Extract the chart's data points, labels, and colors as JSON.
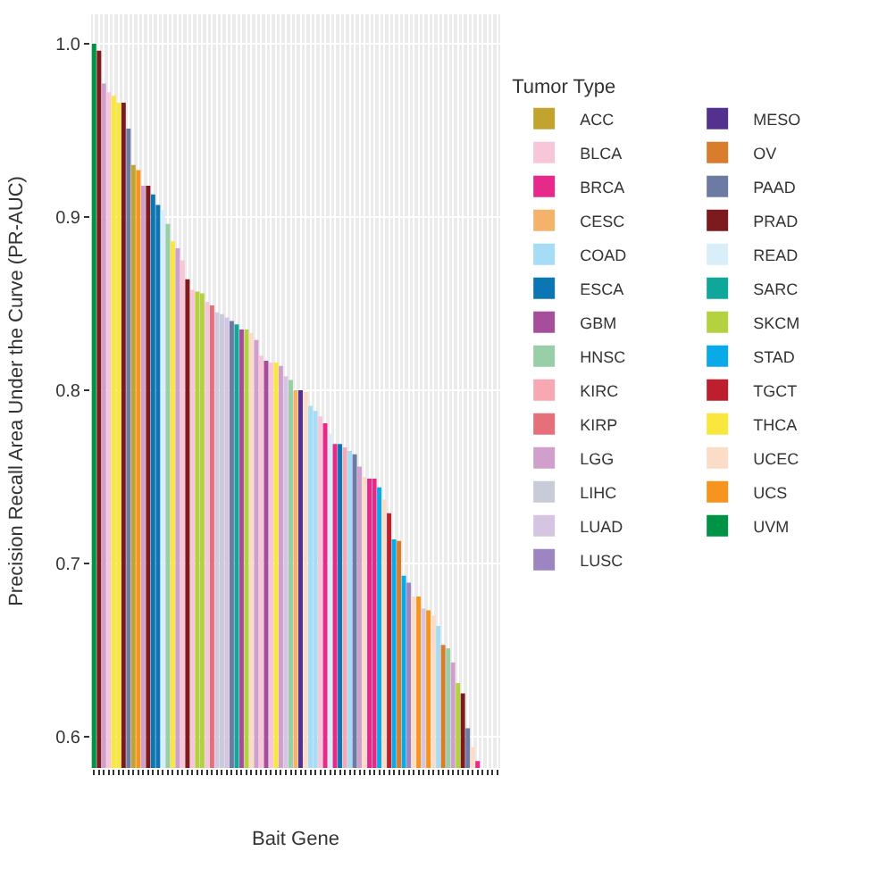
{
  "chart_data": {
    "type": "bar",
    "xlabel": "Bait Gene",
    "ylabel": "Precision Recall Area Under the Curve (PR-AUC)",
    "legend_title": "Tumor Type",
    "legend": "right",
    "grid": true,
    "ylim": [
      0.582,
      1.017
    ],
    "yticks": [
      0.6,
      0.7,
      0.8,
      0.9,
      {
        "value": 1,
        "label": "1.0"
      }
    ],
    "categories": [
      null,
      null,
      null,
      null,
      null,
      null,
      null,
      null,
      null,
      null,
      null,
      null,
      null,
      null,
      null,
      null,
      null,
      null,
      null,
      null,
      null,
      null,
      null,
      null,
      null,
      null,
      null,
      null,
      null,
      null,
      null,
      null,
      null,
      null,
      null,
      null,
      null,
      null,
      null,
      null,
      null,
      null,
      null,
      null,
      null,
      null,
      null,
      null,
      null,
      null,
      null,
      null,
      null,
      null,
      null,
      null,
      null,
      null,
      null,
      null,
      null,
      null,
      null,
      null,
      null,
      null,
      null,
      null,
      null,
      null,
      null,
      null,
      null,
      null,
      null,
      null,
      null,
      null,
      null,
      null,
      null,
      null,
      null
    ],
    "series": [
      {
        "name": "ACC",
        "color": "#c2a32f",
        "values": [
          null,
          null,
          null,
          null,
          null,
          null,
          null,
          null,
          0.93,
          null,
          null,
          null,
          null,
          null,
          null,
          null,
          null,
          null,
          null,
          null,
          null,
          null,
          null,
          null,
          null,
          null,
          null,
          null,
          null,
          null,
          null,
          null,
          null,
          null,
          null,
          null,
          null,
          null,
          null,
          null,
          null,
          null,
          null,
          null,
          null,
          null,
          null,
          null,
          null,
          null,
          null,
          null,
          null,
          null,
          null,
          null,
          null,
          null,
          null,
          null,
          null,
          null,
          null,
          null,
          null,
          null,
          null,
          null,
          null,
          null,
          null,
          null,
          null,
          null,
          null,
          null,
          null,
          null,
          null,
          null,
          null,
          null,
          null
        ]
      },
      {
        "name": "BLCA",
        "color": "#f7c6d9",
        "values": [
          null,
          null,
          null,
          0.972,
          null,
          null,
          null,
          null,
          null,
          null,
          null,
          null,
          null,
          null,
          null,
          null,
          null,
          null,
          0.875,
          null,
          0.858,
          null,
          null,
          0.851,
          null,
          null,
          null,
          null,
          null,
          null,
          null,
          null,
          null,
          null,
          0.82,
          null,
          0.816,
          null,
          null,
          null,
          null,
          null,
          null,
          null,
          null,
          null,
          0.785,
          null,
          null,
          null,
          null,
          null,
          null,
          null,
          null,
          null,
          null,
          null,
          null,
          null,
          null,
          null,
          null,
          null,
          null,
          null,
          null,
          null,
          null,
          null,
          null,
          null,
          null,
          null,
          null,
          null,
          null,
          null,
          null,
          null,
          null,
          null,
          null
        ]
      },
      {
        "name": "BRCA",
        "color": "#e7298a",
        "values": [
          null,
          null,
          null,
          null,
          null,
          null,
          null,
          null,
          null,
          null,
          null,
          null,
          null,
          null,
          null,
          null,
          null,
          null,
          null,
          null,
          null,
          null,
          null,
          null,
          null,
          null,
          null,
          null,
          null,
          null,
          null,
          null,
          null,
          null,
          null,
          null,
          null,
          null,
          null,
          null,
          null,
          null,
          null,
          null,
          null,
          null,
          null,
          0.781,
          null,
          0.769,
          null,
          null,
          null,
          null,
          null,
          null,
          0.749,
          0.749,
          null,
          null,
          null,
          null,
          null,
          null,
          null,
          null,
          null,
          null,
          null,
          null,
          null,
          null,
          null,
          null,
          null,
          null,
          null,
          null,
          0.586,
          null,
          null,
          null,
          null
        ]
      },
      {
        "name": "CESC",
        "color": "#f4b26b",
        "values": [
          null,
          null,
          null,
          null,
          null,
          null,
          null,
          null,
          null,
          null,
          null,
          null,
          null,
          null,
          null,
          null,
          null,
          null,
          null,
          null,
          null,
          null,
          null,
          null,
          null,
          null,
          null,
          null,
          null,
          null,
          null,
          null,
          null,
          null,
          null,
          null,
          null,
          null,
          null,
          null,
          null,
          0.8,
          null,
          null,
          null,
          null,
          null,
          null,
          null,
          null,
          null,
          null,
          null,
          null,
          null,
          null,
          null,
          null,
          null,
          null,
          null,
          null,
          null,
          null,
          null,
          null,
          null,
          null,
          null,
          null,
          null,
          null,
          null,
          null,
          null,
          null,
          null,
          null,
          null,
          null,
          null,
          null,
          null
        ]
      },
      {
        "name": "COAD",
        "color": "#a6dcf5",
        "values": [
          null,
          null,
          null,
          null,
          null,
          null,
          null,
          null,
          null,
          null,
          null,
          null,
          null,
          null,
          null,
          null,
          null,
          null,
          null,
          null,
          null,
          null,
          null,
          null,
          null,
          null,
          null,
          null,
          null,
          null,
          null,
          null,
          null,
          null,
          null,
          null,
          null,
          null,
          null,
          null,
          null,
          null,
          null,
          null,
          0.791,
          0.788,
          null,
          null,
          null,
          null,
          null,
          null,
          0.765,
          null,
          null,
          null,
          null,
          null,
          null,
          null,
          null,
          null,
          null,
          null,
          null,
          null,
          null,
          null,
          null,
          null,
          0.664,
          null,
          null,
          null,
          null,
          null,
          null,
          null,
          null,
          null,
          null,
          null,
          null
        ]
      },
      {
        "name": "ESCA",
        "color": "#0c76b4",
        "values": [
          null,
          null,
          null,
          null,
          null,
          null,
          null,
          null,
          null,
          null,
          null,
          null,
          0.913,
          0.907,
          null,
          null,
          null,
          null,
          null,
          null,
          null,
          null,
          null,
          null,
          null,
          null,
          null,
          null,
          null,
          null,
          null,
          null,
          null,
          null,
          null,
          null,
          null,
          null,
          null,
          null,
          null,
          null,
          null,
          null,
          null,
          null,
          null,
          null,
          null,
          null,
          0.769,
          null,
          null,
          null,
          null,
          null,
          null,
          null,
          null,
          null,
          null,
          null,
          null,
          null,
          null,
          null,
          null,
          null,
          null,
          null,
          null,
          null,
          null,
          null,
          null,
          null,
          null,
          null,
          null,
          null,
          null,
          null,
          null
        ]
      },
      {
        "name": "GBM",
        "color": "#a64d9c",
        "values": [
          null,
          null,
          null,
          null,
          null,
          null,
          null,
          null,
          null,
          null,
          null,
          null,
          null,
          null,
          null,
          null,
          null,
          null,
          null,
          null,
          null,
          null,
          null,
          null,
          null,
          null,
          null,
          null,
          null,
          null,
          0.835,
          null,
          null,
          null,
          null,
          0.817,
          null,
          null,
          null,
          null,
          null,
          null,
          null,
          null,
          null,
          null,
          null,
          null,
          null,
          null,
          null,
          null,
          null,
          null,
          null,
          null,
          null,
          null,
          null,
          null,
          null,
          null,
          null,
          null,
          null,
          null,
          null,
          null,
          null,
          null,
          null,
          null,
          null,
          null,
          null,
          null,
          null,
          null,
          null,
          null,
          null,
          null,
          null
        ]
      },
      {
        "name": "HNSC",
        "color": "#99cfa8",
        "values": [
          null,
          null,
          null,
          null,
          null,
          null,
          null,
          null,
          null,
          null,
          null,
          null,
          null,
          null,
          null,
          0.896,
          null,
          null,
          null,
          null,
          null,
          null,
          null,
          null,
          null,
          null,
          null,
          null,
          null,
          null,
          null,
          null,
          null,
          null,
          null,
          null,
          null,
          null,
          null,
          null,
          0.806,
          null,
          null,
          null,
          null,
          null,
          null,
          null,
          null,
          null,
          null,
          null,
          null,
          null,
          null,
          null,
          null,
          null,
          null,
          null,
          null,
          null,
          null,
          null,
          null,
          null,
          null,
          null,
          null,
          null,
          null,
          null,
          0.651,
          null,
          null,
          null,
          null,
          null,
          null,
          null,
          null,
          null,
          null
        ]
      },
      {
        "name": "KIRC",
        "color": "#f7a8b2",
        "values": [
          null,
          null,
          null,
          null,
          null,
          null,
          null,
          null,
          null,
          null,
          null,
          null,
          null,
          null,
          null,
          null,
          null,
          null,
          null,
          null,
          null,
          null,
          null,
          null,
          null,
          null,
          null,
          null,
          null,
          null,
          null,
          null,
          null,
          null,
          null,
          null,
          null,
          null,
          null,
          null,
          null,
          null,
          null,
          null,
          null,
          null,
          null,
          null,
          null,
          null,
          null,
          0.767,
          null,
          null,
          null,
          null,
          null,
          null,
          null,
          null,
          null,
          null,
          null,
          null,
          null,
          null,
          null,
          null,
          null,
          null,
          null,
          null,
          null,
          null,
          null,
          null,
          null,
          null,
          null,
          null,
          null,
          null,
          null
        ]
      },
      {
        "name": "KIRP",
        "color": "#e5707a",
        "values": [
          null,
          null,
          null,
          null,
          null,
          null,
          null,
          null,
          null,
          null,
          null,
          null,
          null,
          null,
          null,
          null,
          null,
          null,
          null,
          null,
          null,
          null,
          null,
          null,
          0.849,
          null,
          null,
          null,
          null,
          null,
          null,
          null,
          null,
          null,
          null,
          null,
          null,
          null,
          null,
          null,
          null,
          null,
          null,
          null,
          null,
          null,
          null,
          null,
          null,
          null,
          null,
          null,
          null,
          null,
          null,
          null,
          null,
          null,
          null,
          null,
          null,
          null,
          null,
          null,
          null,
          null,
          null,
          null,
          null,
          null,
          null,
          null,
          null,
          null,
          null,
          null,
          null,
          null,
          null,
          null,
          null,
          null,
          null
        ]
      },
      {
        "name": "LGG",
        "color": "#d19fcb",
        "values": [
          null,
          null,
          0.977,
          null,
          null,
          null,
          null,
          null,
          null,
          null,
          0.918,
          null,
          null,
          null,
          null,
          null,
          null,
          0.882,
          null,
          null,
          null,
          null,
          null,
          null,
          null,
          null,
          null,
          null,
          null,
          null,
          null,
          null,
          null,
          0.829,
          null,
          null,
          null,
          null,
          0.814,
          null,
          null,
          null,
          null,
          null,
          null,
          null,
          null,
          null,
          null,
          null,
          null,
          null,
          null,
          null,
          0.756,
          null,
          null,
          null,
          null,
          null,
          null,
          null,
          null,
          null,
          null,
          null,
          null,
          null,
          null,
          null,
          null,
          null,
          null,
          0.643,
          null,
          null,
          null,
          null,
          null,
          null,
          null,
          null,
          null
        ]
      },
      {
        "name": "LIHC",
        "color": "#c8cbd8",
        "values": [
          null,
          null,
          null,
          null,
          null,
          null,
          null,
          null,
          null,
          null,
          null,
          null,
          null,
          null,
          null,
          null,
          null,
          null,
          null,
          null,
          null,
          null,
          null,
          null,
          null,
          null,
          0.844,
          null,
          null,
          null,
          null,
          null,
          null,
          null,
          null,
          null,
          null,
          null,
          null,
          null,
          null,
          null,
          null,
          null,
          null,
          null,
          null,
          null,
          null,
          null,
          null,
          null,
          null,
          null,
          null,
          null,
          null,
          null,
          null,
          null,
          null,
          null,
          null,
          null,
          null,
          null,
          null,
          null,
          null,
          null,
          null,
          null,
          null,
          null,
          null,
          null,
          null,
          null,
          null,
          null,
          null,
          null,
          null
        ]
      },
      {
        "name": "LUAD",
        "color": "#d5c5e3",
        "values": [
          null,
          null,
          null,
          null,
          null,
          null,
          null,
          null,
          null,
          null,
          null,
          null,
          null,
          null,
          null,
          null,
          null,
          null,
          null,
          null,
          null,
          null,
          null,
          null,
          null,
          0.845,
          null,
          0.842,
          null,
          null,
          null,
          null,
          null,
          null,
          null,
          null,
          null,
          null,
          null,
          0.808,
          null,
          null,
          null,
          null,
          null,
          null,
          null,
          null,
          null,
          null,
          null,
          null,
          null,
          null,
          null,
          null,
          null,
          null,
          null,
          null,
          null,
          null,
          null,
          null,
          null,
          null,
          null,
          0.674,
          null,
          null,
          null,
          null,
          null,
          null,
          null,
          null,
          null,
          null,
          null,
          null,
          null,
          null,
          null
        ]
      },
      {
        "name": "LUSC",
        "color": "#9c85c0",
        "values": [
          null,
          null,
          null,
          null,
          null,
          null,
          null,
          null,
          null,
          null,
          null,
          null,
          null,
          null,
          null,
          null,
          null,
          null,
          null,
          null,
          null,
          null,
          null,
          null,
          null,
          null,
          null,
          null,
          null,
          null,
          null,
          null,
          null,
          null,
          null,
          null,
          null,
          null,
          null,
          null,
          null,
          null,
          null,
          null,
          null,
          null,
          null,
          null,
          null,
          null,
          null,
          null,
          null,
          null,
          null,
          null,
          null,
          null,
          null,
          null,
          null,
          null,
          null,
          null,
          0.689,
          null,
          null,
          null,
          null,
          null,
          null,
          null,
          null,
          null,
          null,
          null,
          null,
          null,
          null,
          null,
          null,
          null,
          null
        ]
      },
      {
        "name": "MESO",
        "color": "#54318e",
        "values": [
          null,
          null,
          null,
          null,
          null,
          null,
          null,
          null,
          null,
          null,
          null,
          null,
          null,
          null,
          null,
          null,
          null,
          null,
          null,
          null,
          null,
          null,
          null,
          null,
          null,
          null,
          null,
          null,
          null,
          null,
          null,
          null,
          null,
          null,
          null,
          null,
          null,
          null,
          null,
          null,
          null,
          null,
          0.8,
          null,
          null,
          null,
          null,
          null,
          null,
          null,
          null,
          null,
          null,
          null,
          null,
          null,
          null,
          null,
          null,
          null,
          null,
          null,
          null,
          null,
          null,
          null,
          null,
          null,
          null,
          null,
          null,
          null,
          null,
          null,
          null,
          null,
          null,
          null,
          null,
          null,
          null,
          null,
          null
        ]
      },
      {
        "name": "OV",
        "color": "#d97c2b",
        "values": [
          null,
          null,
          null,
          null,
          null,
          null,
          null,
          null,
          null,
          null,
          null,
          null,
          null,
          null,
          null,
          null,
          null,
          null,
          null,
          null,
          null,
          null,
          null,
          null,
          null,
          null,
          null,
          null,
          null,
          null,
          null,
          null,
          null,
          null,
          null,
          null,
          null,
          null,
          null,
          null,
          null,
          null,
          null,
          null,
          null,
          null,
          null,
          null,
          null,
          null,
          null,
          null,
          null,
          null,
          null,
          null,
          null,
          null,
          null,
          null,
          null,
          null,
          0.713,
          null,
          null,
          null,
          null,
          null,
          null,
          null,
          null,
          0.653,
          null,
          null,
          null,
          null,
          null,
          null,
          null,
          null,
          null,
          null,
          null
        ]
      },
      {
        "name": "PAAD",
        "color": "#6d7ba4",
        "values": [
          null,
          null,
          null,
          null,
          null,
          null,
          null,
          0.951,
          null,
          null,
          null,
          null,
          null,
          null,
          null,
          null,
          null,
          null,
          null,
          null,
          null,
          null,
          null,
          null,
          null,
          null,
          null,
          null,
          0.84,
          null,
          null,
          null,
          null,
          null,
          null,
          null,
          null,
          null,
          null,
          null,
          null,
          null,
          null,
          null,
          null,
          null,
          null,
          null,
          null,
          null,
          null,
          null,
          null,
          0.763,
          null,
          null,
          null,
          null,
          null,
          null,
          null,
          null,
          null,
          null,
          null,
          null,
          null,
          null,
          null,
          null,
          null,
          null,
          null,
          null,
          null,
          null,
          0.605,
          null,
          null,
          null,
          null,
          null,
          null
        ]
      },
      {
        "name": "PRAD",
        "color": "#7d1a1d",
        "values": [
          null,
          0.996,
          null,
          null,
          null,
          null,
          0.966,
          null,
          null,
          null,
          null,
          0.918,
          null,
          null,
          null,
          null,
          null,
          null,
          null,
          0.864,
          null,
          null,
          null,
          null,
          null,
          null,
          null,
          null,
          null,
          null,
          null,
          null,
          null,
          null,
          null,
          null,
          null,
          null,
          null,
          null,
          null,
          null,
          null,
          null,
          null,
          null,
          null,
          null,
          null,
          null,
          null,
          null,
          null,
          null,
          null,
          null,
          null,
          null,
          null,
          null,
          null,
          null,
          null,
          null,
          null,
          null,
          null,
          null,
          null,
          null,
          null,
          null,
          null,
          null,
          null,
          0.625,
          null,
          null,
          null,
          null,
          null,
          null,
          null
        ]
      },
      {
        "name": "READ",
        "color": "#daeef9",
        "values": [
          null,
          null,
          null,
          null,
          null,
          null,
          null,
          null,
          null,
          null,
          null,
          null,
          null,
          null,
          0.904,
          null,
          null,
          null,
          null,
          null,
          null,
          null,
          null,
          null,
          null,
          null,
          null,
          null,
          null,
          null,
          null,
          null,
          null,
          null,
          null,
          null,
          null,
          null,
          null,
          null,
          null,
          null,
          null,
          null,
          null,
          null,
          null,
          null,
          0.775,
          null,
          null,
          null,
          null,
          null,
          null,
          null,
          null,
          null,
          null,
          null,
          null,
          null,
          null,
          null,
          null,
          null,
          null,
          null,
          null,
          null,
          null,
          null,
          null,
          null,
          null,
          null,
          null,
          null,
          null,
          null,
          null,
          null,
          null
        ]
      },
      {
        "name": "SARC",
        "color": "#0ea79a",
        "values": [
          null,
          null,
          null,
          null,
          null,
          null,
          null,
          null,
          null,
          null,
          null,
          null,
          null,
          null,
          null,
          null,
          null,
          null,
          null,
          null,
          null,
          null,
          null,
          null,
          null,
          null,
          null,
          null,
          null,
          0.838,
          null,
          null,
          null,
          null,
          null,
          null,
          null,
          null,
          null,
          null,
          null,
          null,
          null,
          null,
          null,
          null,
          null,
          null,
          null,
          null,
          null,
          null,
          null,
          null,
          null,
          null,
          null,
          null,
          null,
          null,
          null,
          null,
          null,
          null,
          null,
          null,
          null,
          null,
          null,
          null,
          null,
          null,
          null,
          null,
          null,
          null,
          null,
          null,
          null,
          null,
          null,
          null,
          null
        ]
      },
      {
        "name": "SKCM",
        "color": "#b4d23f",
        "values": [
          null,
          null,
          null,
          null,
          null,
          null,
          null,
          null,
          null,
          null,
          null,
          null,
          null,
          null,
          null,
          null,
          null,
          null,
          null,
          null,
          null,
          0.857,
          0.856,
          null,
          null,
          null,
          null,
          null,
          null,
          null,
          null,
          0.835,
          null,
          null,
          null,
          null,
          null,
          null,
          null,
          null,
          null,
          null,
          null,
          null,
          null,
          null,
          null,
          null,
          null,
          null,
          null,
          null,
          null,
          null,
          null,
          null,
          null,
          null,
          null,
          null,
          null,
          null,
          null,
          null,
          null,
          null,
          null,
          null,
          null,
          null,
          null,
          null,
          null,
          null,
          0.631,
          null,
          null,
          null,
          null,
          null,
          null,
          null,
          null
        ]
      },
      {
        "name": "STAD",
        "color": "#0aa9e8",
        "values": [
          null,
          null,
          null,
          null,
          null,
          null,
          null,
          null,
          null,
          null,
          null,
          null,
          null,
          null,
          null,
          null,
          null,
          null,
          null,
          null,
          null,
          null,
          null,
          null,
          null,
          null,
          null,
          null,
          null,
          null,
          null,
          null,
          null,
          null,
          null,
          null,
          null,
          null,
          null,
          null,
          null,
          null,
          null,
          null,
          null,
          null,
          null,
          null,
          null,
          null,
          null,
          null,
          null,
          null,
          null,
          null,
          null,
          null,
          0.744,
          null,
          null,
          0.714,
          null,
          0.693,
          null,
          null,
          null,
          null,
          null,
          null,
          null,
          null,
          null,
          null,
          null,
          null,
          null,
          null,
          null,
          null,
          null,
          null,
          null
        ]
      },
      {
        "name": "TGCT",
        "color": "#bd1f2e",
        "values": [
          null,
          null,
          null,
          null,
          null,
          null,
          null,
          null,
          null,
          null,
          null,
          null,
          null,
          null,
          null,
          null,
          null,
          null,
          null,
          null,
          null,
          null,
          null,
          null,
          null,
          null,
          null,
          null,
          null,
          null,
          null,
          null,
          null,
          null,
          null,
          null,
          null,
          null,
          null,
          null,
          null,
          null,
          null,
          null,
          null,
          null,
          null,
          null,
          null,
          null,
          null,
          null,
          null,
          null,
          null,
          null,
          null,
          null,
          null,
          null,
          0.729,
          null,
          null,
          null,
          null,
          null,
          null,
          null,
          null,
          null,
          null,
          null,
          null,
          null,
          null,
          null,
          null,
          null,
          null,
          null,
          null,
          null,
          null
        ]
      },
      {
        "name": "THCA",
        "color": "#f9e73e",
        "values": [
          null,
          null,
          null,
          null,
          0.97,
          0.966,
          null,
          null,
          null,
          null,
          null,
          null,
          null,
          null,
          null,
          null,
          0.886,
          null,
          null,
          null,
          null,
          null,
          null,
          null,
          null,
          null,
          null,
          null,
          null,
          null,
          null,
          null,
          null,
          null,
          null,
          null,
          null,
          0.816,
          null,
          null,
          null,
          null,
          null,
          null,
          null,
          null,
          null,
          null,
          null,
          null,
          null,
          null,
          null,
          null,
          null,
          null,
          null,
          null,
          null,
          null,
          null,
          null,
          null,
          null,
          null,
          null,
          null,
          null,
          null,
          null,
          null,
          null,
          null,
          null,
          null,
          null,
          null,
          null,
          null,
          null,
          null,
          null,
          null
        ]
      },
      {
        "name": "UCEC",
        "color": "#fbdcc6",
        "values": [
          null,
          null,
          null,
          null,
          null,
          null,
          null,
          null,
          null,
          null,
          null,
          null,
          null,
          null,
          null,
          null,
          null,
          null,
          null,
          null,
          null,
          null,
          null,
          null,
          null,
          null,
          null,
          null,
          null,
          null,
          null,
          null,
          0.833,
          null,
          null,
          null,
          null,
          null,
          null,
          null,
          null,
          null,
          null,
          0.799,
          null,
          null,
          null,
          null,
          null,
          null,
          null,
          null,
          null,
          null,
          null,
          0.75,
          null,
          null,
          null,
          0.737,
          null,
          null,
          null,
          null,
          null,
          0.681,
          null,
          null,
          null,
          0.67,
          null,
          null,
          null,
          null,
          null,
          null,
          null,
          0.594,
          null,
          null,
          null,
          null,
          null
        ]
      },
      {
        "name": "UCS",
        "color": "#f7941e",
        "values": [
          null,
          null,
          null,
          null,
          null,
          null,
          null,
          null,
          null,
          0.927,
          null,
          null,
          null,
          null,
          null,
          null,
          null,
          null,
          null,
          null,
          null,
          null,
          null,
          null,
          null,
          null,
          null,
          null,
          null,
          null,
          null,
          null,
          null,
          null,
          null,
          null,
          null,
          null,
          null,
          null,
          null,
          null,
          null,
          null,
          null,
          null,
          null,
          null,
          null,
          null,
          null,
          null,
          null,
          null,
          null,
          null,
          null,
          null,
          null,
          null,
          null,
          null,
          null,
          null,
          null,
          null,
          0.681,
          null,
          0.673,
          null,
          null,
          null,
          null,
          null,
          null,
          null,
          null,
          null,
          null,
          null,
          null,
          null,
          null
        ]
      },
      {
        "name": "UVM",
        "color": "#009245",
        "values": [
          1.0,
          null,
          null,
          null,
          null,
          null,
          null,
          null,
          null,
          null,
          null,
          null,
          null,
          null,
          null,
          null,
          null,
          null,
          null,
          null,
          null,
          null,
          null,
          null,
          null,
          null,
          null,
          null,
          null,
          null,
          null,
          null,
          null,
          null,
          null,
          null,
          null,
          null,
          null,
          null,
          null,
          null,
          null,
          null,
          null,
          null,
          null,
          null,
          null,
          null,
          null,
          null,
          null,
          null,
          null,
          null,
          null,
          null,
          null,
          null,
          null,
          null,
          null,
          null,
          null,
          null,
          null,
          null,
          null,
          null,
          null,
          null,
          null,
          null,
          null,
          null,
          null,
          null,
          null,
          null,
          null,
          null,
          null
        ]
      }
    ]
  }
}
